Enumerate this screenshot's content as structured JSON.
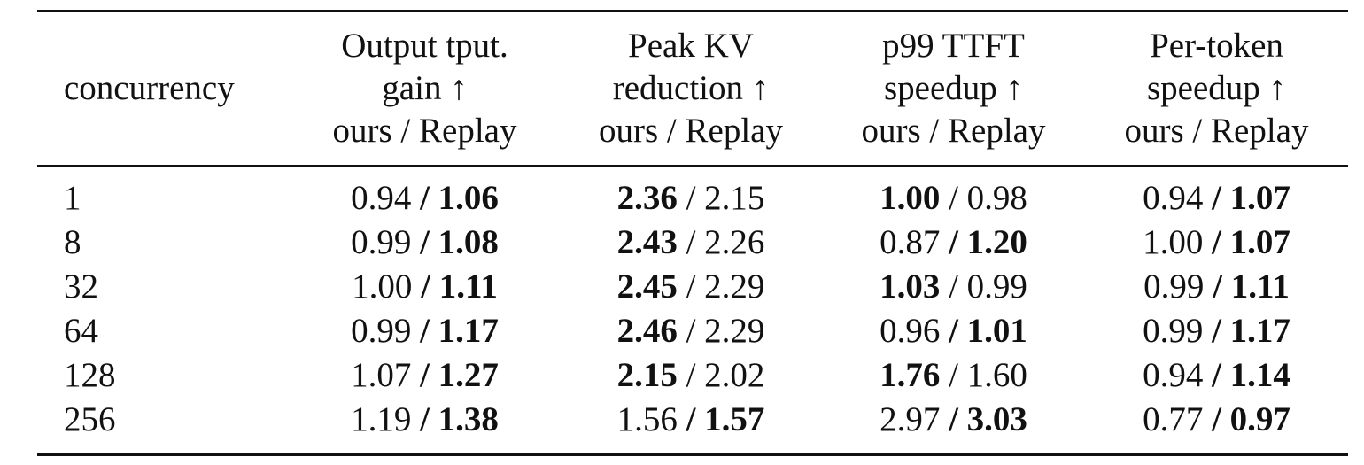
{
  "table": {
    "header": {
      "concurrency": "concurrency",
      "columns": [
        {
          "line1": "Output tput.",
          "line2": "gain ↑",
          "line3": "ours / Replay"
        },
        {
          "line1": "Peak KV",
          "line2": "reduction ↑",
          "line3": "ours / Replay"
        },
        {
          "line1": "p99 TTFT",
          "line2": "speedup ↑",
          "line3": "ours / Replay"
        },
        {
          "line1": "Per-token",
          "line2": "speedup ↑",
          "line3": "ours / Replay"
        }
      ]
    },
    "separator": " / ",
    "rows": [
      {
        "concurrency": "1",
        "cells": [
          {
            "ours": "0.94",
            "replay": "1.06",
            "bold": "replay"
          },
          {
            "ours": "2.36",
            "replay": "2.15",
            "bold": "ours"
          },
          {
            "ours": "1.00",
            "replay": "0.98",
            "bold": "ours"
          },
          {
            "ours": "0.94",
            "replay": "1.07",
            "bold": "replay"
          }
        ]
      },
      {
        "concurrency": "8",
        "cells": [
          {
            "ours": "0.99",
            "replay": "1.08",
            "bold": "replay"
          },
          {
            "ours": "2.43",
            "replay": "2.26",
            "bold": "ours"
          },
          {
            "ours": "0.87",
            "replay": "1.20",
            "bold": "replay"
          },
          {
            "ours": "1.00",
            "replay": "1.07",
            "bold": "replay"
          }
        ]
      },
      {
        "concurrency": "32",
        "cells": [
          {
            "ours": "1.00",
            "replay": "1.11",
            "bold": "replay"
          },
          {
            "ours": "2.45",
            "replay": "2.29",
            "bold": "ours"
          },
          {
            "ours": "1.03",
            "replay": "0.99",
            "bold": "ours"
          },
          {
            "ours": "0.99",
            "replay": "1.11",
            "bold": "replay"
          }
        ]
      },
      {
        "concurrency": "64",
        "cells": [
          {
            "ours": "0.99",
            "replay": "1.17",
            "bold": "replay"
          },
          {
            "ours": "2.46",
            "replay": "2.29",
            "bold": "ours"
          },
          {
            "ours": "0.96",
            "replay": "1.01",
            "bold": "replay"
          },
          {
            "ours": "0.99",
            "replay": "1.17",
            "bold": "replay"
          }
        ]
      },
      {
        "concurrency": "128",
        "cells": [
          {
            "ours": "1.07",
            "replay": "1.27",
            "bold": "replay"
          },
          {
            "ours": "2.15",
            "replay": "2.02",
            "bold": "ours"
          },
          {
            "ours": "1.76",
            "replay": "1.60",
            "bold": "ours"
          },
          {
            "ours": "0.94",
            "replay": "1.14",
            "bold": "replay"
          }
        ]
      },
      {
        "concurrency": "256",
        "cells": [
          {
            "ours": "1.19",
            "replay": "1.38",
            "bold": "replay"
          },
          {
            "ours": "1.56",
            "replay": "1.57",
            "bold": "replay"
          },
          {
            "ours": "2.97",
            "replay": "3.03",
            "bold": "replay"
          },
          {
            "ours": "0.77",
            "replay": "0.97",
            "bold": "replay"
          }
        ]
      }
    ]
  }
}
